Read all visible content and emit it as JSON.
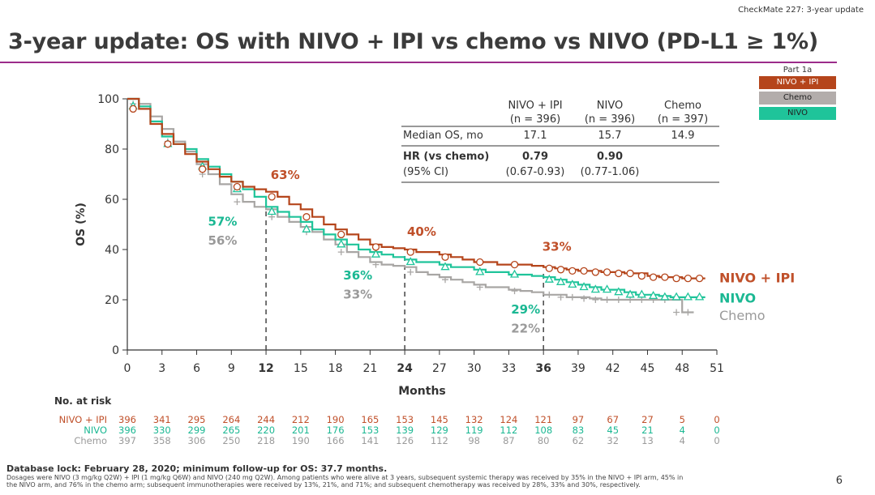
{
  "header_tag": "CheckMate 227: 3-year update",
  "title": "3-year update: OS with NIVO + IPI vs chemo vs NIVO (PD-L1 ≥ 1%)",
  "legend": {
    "header": "Part 1a",
    "items": [
      {
        "label": "NIVO + IPI",
        "bg": "#b5451b",
        "fg": "#ffffff"
      },
      {
        "label": "Chemo",
        "bg": "#b3adab",
        "fg": "#222222"
      },
      {
        "label": "NIVO",
        "bg": "#1fc49a",
        "fg": "#222222"
      }
    ]
  },
  "colors": {
    "nivo_ipi": "#b5451b",
    "nivo": "#1fc49a",
    "chemo": "#a8a6a4",
    "axis": "#333333",
    "nivo_ipi_text": "#c0502a",
    "nivo_text": "#1bb893",
    "chemo_text": "#9a9a9a"
  },
  "stats_table": {
    "col_headers": [
      [
        "NIVO + IPI",
        "(n = 396)"
      ],
      [
        "NIVO",
        "(n = 396)"
      ],
      [
        "Chemo",
        "(n = 397)"
      ]
    ],
    "rows": [
      {
        "label": "Median OS, mo",
        "values": [
          "17.1",
          "15.7",
          "14.9"
        ],
        "bold": false
      },
      {
        "label": "HR (vs chemo)",
        "values": [
          "0.79",
          "0.90",
          ""
        ],
        "bold": true
      },
      {
        "label": "(95% CI)",
        "values": [
          "(0.67-0.93)",
          "(0.77-1.06)",
          ""
        ],
        "bold": false
      }
    ]
  },
  "chart_data": {
    "type": "line",
    "xlabel": "Months",
    "ylabel": "OS (%)",
    "xlim": [
      0,
      51
    ],
    "ylim": [
      0,
      100
    ],
    "xticks": [
      0,
      3,
      6,
      9,
      12,
      15,
      18,
      21,
      24,
      27,
      30,
      33,
      36,
      39,
      42,
      45,
      48,
      51
    ],
    "xticks_bold": [
      12,
      24,
      36
    ],
    "yticks": [
      0,
      20,
      40,
      60,
      80,
      100
    ],
    "landmarks": [
      12,
      24,
      36
    ],
    "series": [
      {
        "name": "NIVO + IPI",
        "key": "nivo_ipi",
        "marker": "circle",
        "x": [
          0,
          1,
          2,
          3,
          4,
          5,
          6,
          7,
          8,
          9,
          10,
          11,
          12,
          13,
          14,
          15,
          16,
          17,
          18,
          19,
          20,
          21,
          22,
          23,
          24,
          25,
          26,
          27,
          28,
          29,
          30,
          31,
          32,
          33,
          34,
          35,
          36,
          37,
          38,
          39,
          40,
          41,
          42,
          43,
          44,
          45,
          46,
          47,
          48,
          49,
          50
        ],
        "y": [
          100,
          96,
          90,
          86,
          82,
          78,
          75,
          72,
          69,
          67,
          65,
          64,
          63,
          61,
          58,
          56,
          53,
          50,
          48,
          46,
          44,
          42,
          41,
          40.5,
          40,
          39,
          39,
          38,
          37,
          36,
          35,
          35,
          34,
          34,
          34,
          33.5,
          33,
          32.5,
          32,
          31.5,
          31.5,
          31,
          31,
          30.5,
          30.5,
          29.5,
          29,
          29,
          28.5,
          28.5,
          28.5
        ]
      },
      {
        "name": "NIVO",
        "key": "nivo",
        "marker": "triangle",
        "x": [
          0,
          1,
          2,
          3,
          4,
          5,
          6,
          7,
          8,
          9,
          10,
          11,
          12,
          13,
          14,
          15,
          16,
          17,
          18,
          19,
          20,
          21,
          22,
          23,
          24,
          25,
          26,
          27,
          28,
          29,
          30,
          31,
          32,
          33,
          34,
          35,
          36,
          37,
          38,
          39,
          40,
          41,
          42,
          43,
          44,
          45,
          46,
          47,
          48,
          49,
          50
        ],
        "y": [
          100,
          97,
          91,
          85,
          82,
          80,
          76,
          73,
          70,
          67,
          64,
          61,
          57,
          55,
          53,
          51,
          48,
          46,
          44,
          42,
          40,
          39,
          38,
          37,
          36,
          35,
          35,
          34,
          33,
          33,
          32,
          31,
          31,
          30,
          30,
          29.5,
          29,
          28,
          27,
          26,
          25,
          24,
          24,
          23,
          22,
          22,
          21.5,
          21,
          21,
          21,
          21
        ]
      },
      {
        "name": "Chemo",
        "key": "chemo",
        "marker": "plus",
        "x": [
          0,
          1,
          2,
          3,
          4,
          5,
          6,
          7,
          8,
          9,
          10,
          11,
          12,
          13,
          14,
          15,
          16,
          17,
          18,
          19,
          20,
          21,
          22,
          23,
          24,
          25,
          26,
          27,
          28,
          29,
          30,
          31,
          32,
          33,
          34,
          35,
          36,
          37,
          38,
          39,
          40,
          41,
          42,
          43,
          44,
          45,
          46,
          47,
          48,
          49
        ],
        "y": [
          100,
          98,
          93,
          88,
          83,
          79,
          74,
          70,
          66,
          62,
          59,
          57,
          56,
          53,
          51,
          49,
          47,
          44,
          42,
          39,
          37,
          35,
          34,
          33.5,
          33,
          31,
          30,
          29,
          28,
          27,
          26,
          25,
          25,
          24,
          23.5,
          23,
          22,
          22,
          21,
          21,
          20.5,
          20,
          20,
          20,
          20,
          20,
          20,
          20,
          15,
          15
        ]
      }
    ],
    "annotations": [
      {
        "text": "63%",
        "x": 12.4,
        "y": 68,
        "key": "nivo_ipi"
      },
      {
        "text": "57%",
        "x": 9.5,
        "y": 49.5,
        "key": "nivo"
      },
      {
        "text": "56%",
        "x": 9.5,
        "y": 42,
        "key": "chemo"
      },
      {
        "text": "40%",
        "x": 24.2,
        "y": 45.5,
        "key": "nivo_ipi"
      },
      {
        "text": "36%",
        "x": 21.2,
        "y": 28,
        "key": "nivo"
      },
      {
        "text": "33%",
        "x": 21.2,
        "y": 20.5,
        "key": "chemo"
      },
      {
        "text": "33%",
        "x": 35.9,
        "y": 39.5,
        "key": "nivo_ipi"
      },
      {
        "text": "29%",
        "x": 33.2,
        "y": 14.5,
        "key": "nivo"
      },
      {
        "text": "22%",
        "x": 33.2,
        "y": 7,
        "key": "chemo"
      }
    ],
    "end_labels": [
      {
        "text": "NIVO + IPI",
        "y": 28.5,
        "key": "nivo_ipi"
      },
      {
        "text": "NIVO",
        "y": 20.5,
        "key": "nivo"
      },
      {
        "text": "Chemo",
        "y": 13.5,
        "key": "chemo"
      }
    ]
  },
  "at_risk": {
    "title": "No. at risk",
    "rows": [
      {
        "label": "NIVO + IPI",
        "key": "nivo_ipi",
        "values": [
          396,
          341,
          295,
          264,
          244,
          212,
          190,
          165,
          153,
          145,
          132,
          124,
          121,
          97,
          67,
          27,
          5,
          0
        ]
      },
      {
        "label": "NIVO",
        "key": "nivo",
        "values": [
          396,
          330,
          299,
          265,
          220,
          201,
          176,
          153,
          139,
          129,
          119,
          112,
          108,
          83,
          45,
          21,
          4,
          0
        ]
      },
      {
        "label": "Chemo",
        "key": "chemo",
        "values": [
          397,
          358,
          306,
          250,
          218,
          190,
          166,
          141,
          126,
          112,
          98,
          87,
          80,
          62,
          32,
          13,
          4,
          0
        ]
      }
    ]
  },
  "footer": {
    "bold": "Database lock: February 28, 2020; minimum follow-up for OS: 37.7 months.",
    "line1": "Dosages were NIVO (3 mg/kg Q2W) + IPI (1 mg/kg Q6W) and NIVO (240 mg Q2W). Among patients who were alive at 3 years, subsequent systemic therapy was received by 35% in the NIVO + IPI arm, 45% in",
    "line2": "the NIVO arm, and 76% in the chemo arm; subsequent immunotherapies were received by 13%, 21%, and 71%; and subsequent chemotherapy was received by 28%, 33% and 30%, respectively."
  },
  "page_number": "6"
}
